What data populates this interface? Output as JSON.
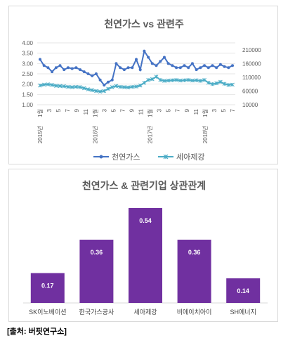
{
  "chart_data": [
    {
      "type": "line",
      "title": "천연가스 vs 관련주",
      "x_tick_labels": [
        "1월",
        "3",
        "5",
        "7",
        "9",
        "11",
        "1월",
        "3",
        "5",
        "7",
        "9",
        "11",
        "1월",
        "3",
        "5",
        "7",
        "9",
        "11",
        "1월",
        "3",
        "5",
        "7"
      ],
      "year_labels": [
        "2015년",
        "2016년",
        "2017년",
        "2018년"
      ],
      "y_left": {
        "ticks": [
          "1.00",
          "1.50",
          "2.00",
          "2.50",
          "3.00",
          "3.50",
          "4.00"
        ],
        "lim": [
          1.0,
          4.0
        ]
      },
      "y_right": {
        "ticks": [
          "10000",
          "60000",
          "110000",
          "160000",
          "210000"
        ],
        "lim": [
          10000,
          235000
        ]
      },
      "series": [
        {
          "name": "천연가스",
          "axis": "left",
          "color": "#4472c4",
          "values": [
            3.2,
            2.9,
            2.8,
            2.6,
            2.8,
            2.9,
            2.7,
            2.8,
            2.75,
            2.8,
            2.7,
            2.6,
            2.5,
            2.4,
            2.5,
            2.2,
            1.95,
            2.1,
            2.2,
            3.0,
            2.8,
            2.7,
            2.8,
            2.8,
            3.2,
            2.7,
            3.6,
            3.3,
            3.0,
            2.9,
            3.1,
            3.3,
            3.0,
            2.9,
            2.8,
            2.8,
            2.9,
            2.8,
            3.0,
            2.7,
            2.8,
            2.9,
            2.8,
            2.9,
            2.8,
            2.95,
            2.85,
            2.8,
            2.9
          ]
        },
        {
          "name": "세아제강",
          "axis": "right",
          "color": "#4bacc6",
          "values": [
            80000,
            83000,
            84000,
            82000,
            79000,
            78000,
            77000,
            75000,
            74000,
            75000,
            74000,
            70000,
            66000,
            63000,
            60000,
            58000,
            60000,
            68000,
            74000,
            78000,
            75000,
            74000,
            73000,
            75000,
            76000,
            80000,
            90000,
            100000,
            103000,
            112000,
            100000,
            97000,
            98000,
            99000,
            100000,
            98000,
            99000,
            100000,
            98000,
            99000,
            97000,
            100000,
            90000,
            85000,
            88000,
            93000,
            86000,
            82000,
            83000
          ]
        }
      ]
    },
    {
      "type": "bar",
      "title": "천연가스 & 관련기업 상관관계",
      "categories": [
        "SK이노베이션",
        "한국가스공사",
        "세아제강",
        "비에이치아이",
        "SH에너지"
      ],
      "values": [
        0.17,
        0.36,
        0.54,
        0.36,
        0.14
      ],
      "value_labels": [
        "0.17",
        "0.36",
        "0.54",
        "0.36",
        "0.14"
      ],
      "color": "#7030a0",
      "ylim": [
        0,
        0.6
      ]
    }
  ],
  "source_note": "[출처: 버핏연구소]"
}
